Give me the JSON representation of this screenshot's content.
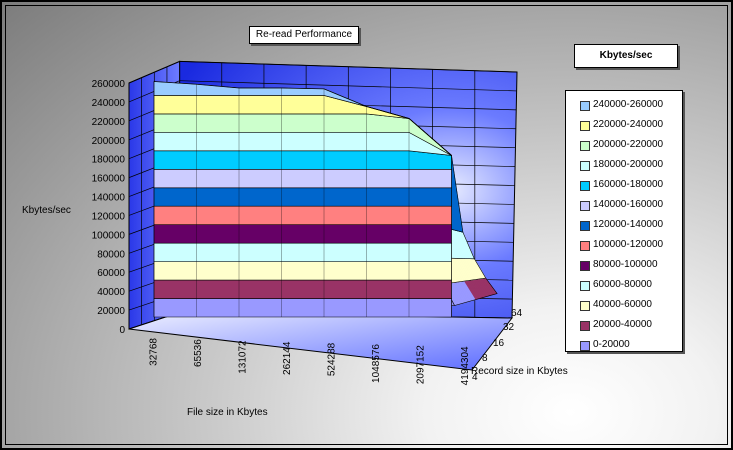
{
  "chart_data": {
    "type": "surface-3d",
    "title": "Re-read Performance",
    "xlabel": "File size in Kbytes",
    "ylabel": "Kbytes/sec",
    "zlabel": "Record size in Kbytes",
    "file_sizes": [
      "32768",
      "65536",
      "131072",
      "262144",
      "524288",
      "1048576",
      "2097152",
      "4194304"
    ],
    "record_sizes": [
      "4",
      "8",
      "16",
      "32",
      "64"
    ],
    "ylim": [
      0,
      260000
    ],
    "yticks": [
      "0",
      "20000",
      "40000",
      "60000",
      "80000",
      "100000",
      "120000",
      "140000",
      "160000",
      "180000",
      "200000",
      "220000",
      "240000",
      "260000"
    ],
    "values_front_record_4": [
      255000,
      252000,
      248000,
      248000,
      247000,
      228000,
      215000,
      175000
    ],
    "values_back_record_64": [
      40000,
      22000,
      18000,
      12000,
      8000,
      3000,
      2000,
      15000
    ]
  },
  "legend": {
    "title": "Kbytes/sec",
    "items": [
      {
        "label": "240000-260000",
        "color": "#99ccff"
      },
      {
        "label": "220000-240000",
        "color": "#ffff99"
      },
      {
        "label": "200000-220000",
        "color": "#ccffcc"
      },
      {
        "label": "180000-200000",
        "color": "#ccffff"
      },
      {
        "label": "160000-180000",
        "color": "#00ccff"
      },
      {
        "label": "140000-160000",
        "color": "#ccccff"
      },
      {
        "label": "120000-140000",
        "color": "#0066cc"
      },
      {
        "label": "100000-120000",
        "color": "#ff8080"
      },
      {
        "label": "80000-100000",
        "color": "#660066"
      },
      {
        "label": "60000-80000",
        "color": "#ccffff"
      },
      {
        "label": "40000-60000",
        "color": "#ffffcc"
      },
      {
        "label": "20000-40000",
        "color": "#993366"
      },
      {
        "label": "0-20000",
        "color": "#9999ff"
      }
    ]
  }
}
